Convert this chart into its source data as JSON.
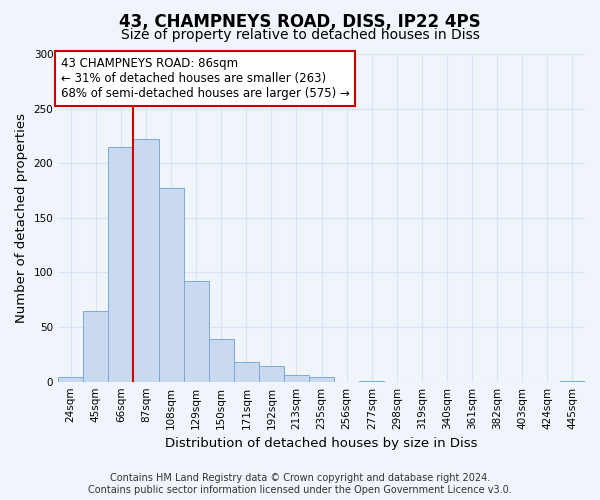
{
  "title": "43, CHAMPNEYS ROAD, DISS, IP22 4PS",
  "subtitle": "Size of property relative to detached houses in Diss",
  "xlabel": "Distribution of detached houses by size in Diss",
  "ylabel": "Number of detached properties",
  "bin_labels": [
    "24sqm",
    "45sqm",
    "66sqm",
    "87sqm",
    "108sqm",
    "129sqm",
    "150sqm",
    "171sqm",
    "192sqm",
    "213sqm",
    "235sqm",
    "256sqm",
    "277sqm",
    "298sqm",
    "319sqm",
    "340sqm",
    "361sqm",
    "382sqm",
    "403sqm",
    "424sqm",
    "445sqm"
  ],
  "bar_values": [
    4,
    65,
    215,
    222,
    177,
    92,
    39,
    18,
    14,
    6,
    4,
    0,
    1,
    0,
    0,
    0,
    0,
    0,
    0,
    0,
    1
  ],
  "bar_color": "#c9d9f0",
  "bar_edge_color": "#7aaad8",
  "vline_x_idx": 3,
  "vline_color": "#cc0000",
  "annotation_line1": "43 CHAMPNEYS ROAD: 86sqm",
  "annotation_line2": "← 31% of detached houses are smaller (263)",
  "annotation_line3": "68% of semi-detached houses are larger (575) →",
  "annotation_box_facecolor": "white",
  "annotation_box_edgecolor": "#cc0000",
  "ylim": [
    0,
    300
  ],
  "yticks": [
    0,
    50,
    100,
    150,
    200,
    250,
    300
  ],
  "footer_text": "Contains HM Land Registry data © Crown copyright and database right 2024.\nContains public sector information licensed under the Open Government Licence v3.0.",
  "bg_color": "#f0f4fb",
  "grid_color": "#d8e4f5",
  "title_fontsize": 12,
  "subtitle_fontsize": 10,
  "axis_label_fontsize": 9.5,
  "tick_fontsize": 7.5,
  "annotation_fontsize": 8.5,
  "footer_fontsize": 7
}
